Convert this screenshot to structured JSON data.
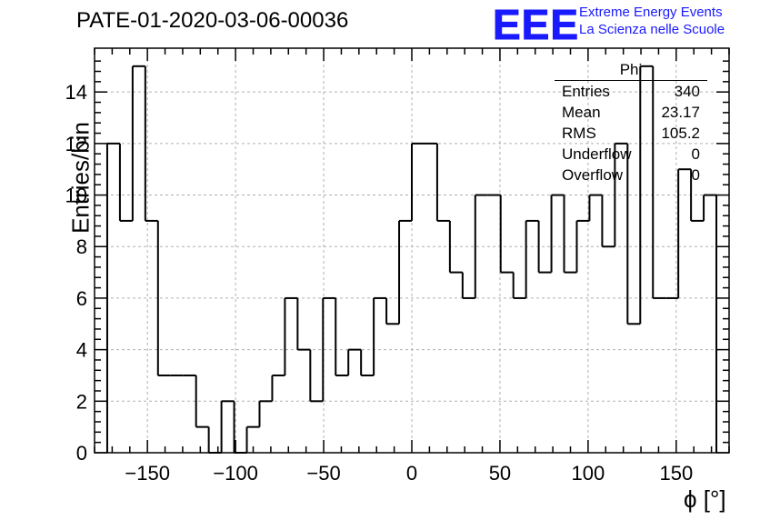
{
  "page_title": "PATE-01-2020-03-06-00036",
  "logo": {
    "text": "EEE",
    "line1": "Extreme Energy Events",
    "line2": "La Scienza nelle Scuole",
    "color": "#1a1aff"
  },
  "stats_box": {
    "title": "Phi",
    "rows": [
      {
        "label": "Entries",
        "value": "340"
      },
      {
        "label": "Mean",
        "value": "23.17"
      },
      {
        "label": "RMS",
        "value": "105.2"
      },
      {
        "label": "Underflow",
        "value": "0"
      },
      {
        "label": "Overflow",
        "value": "0"
      }
    ]
  },
  "chart_data": {
    "type": "histogram",
    "title": "PATE-01-2020-03-06-00036",
    "xlabel": "ϕ [°]",
    "ylabel": "Entries/bin",
    "xlim": [
      -180,
      180
    ],
    "ylim": [
      0,
      15.7
    ],
    "grid": true,
    "line_color": "#000000",
    "bin_width": 7.2,
    "bin_edges_start": -172.8,
    "values": [
      12,
      9,
      15,
      9,
      3,
      3,
      3,
      1,
      0,
      2,
      0,
      1,
      2,
      3,
      6,
      4,
      2,
      6,
      3,
      4,
      3,
      6,
      5,
      9,
      12,
      12,
      9,
      7,
      6,
      10,
      10,
      7,
      6,
      9,
      7,
      10,
      7,
      9,
      10,
      8,
      12,
      5,
      15,
      6,
      6,
      11,
      9,
      10
    ],
    "x_ticks": [
      -150,
      -100,
      -50,
      0,
      50,
      100,
      150
    ],
    "x_tick_labels": [
      "−150",
      "−100",
      "−50",
      "0",
      "50",
      "100",
      "150"
    ],
    "y_ticks": [
      0,
      2,
      4,
      6,
      8,
      10,
      12,
      14
    ],
    "y_tick_labels": [
      "0",
      "2",
      "4",
      "6",
      "8",
      "10",
      "12",
      "14"
    ]
  }
}
